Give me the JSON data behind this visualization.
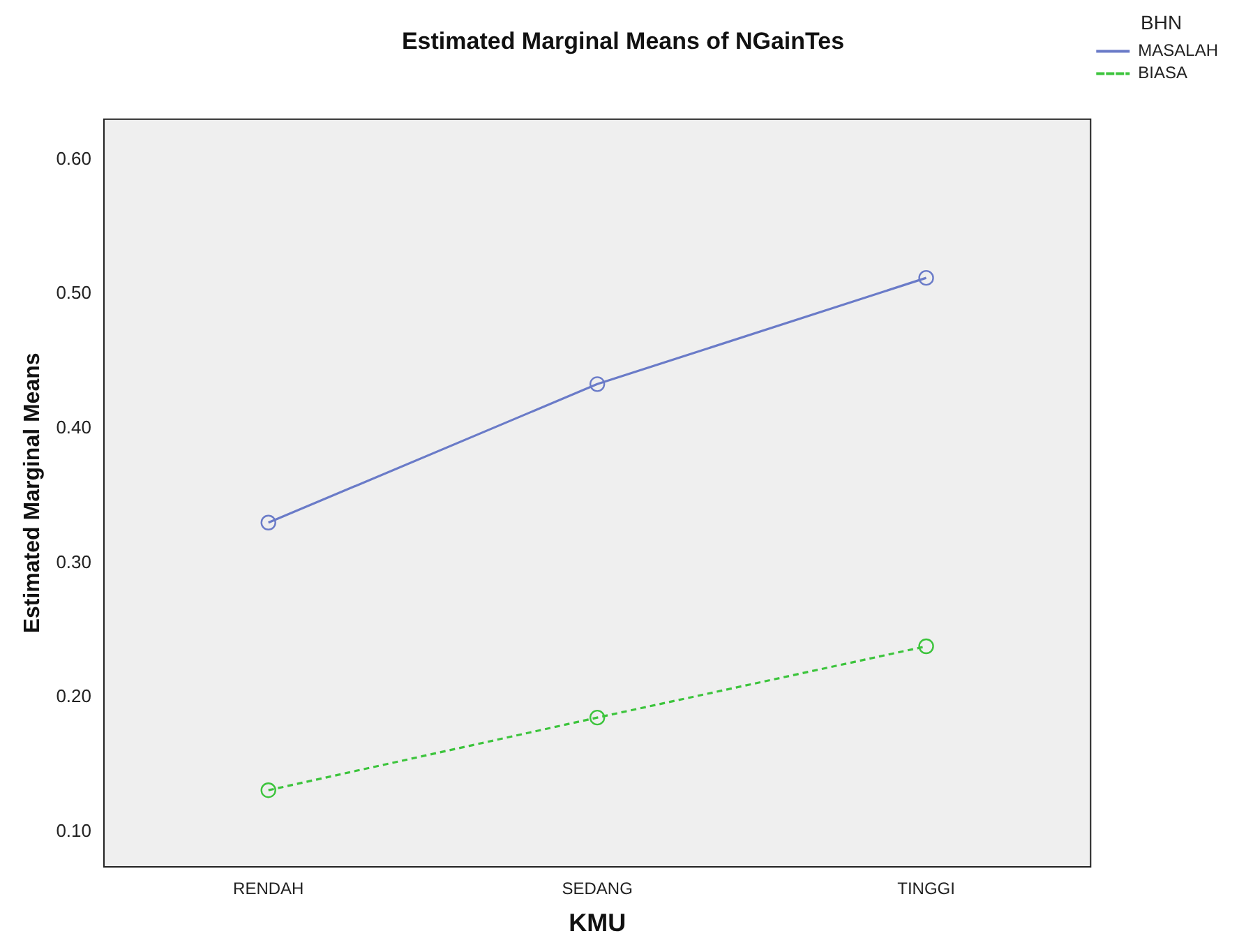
{
  "chart_data": {
    "type": "line",
    "title": "Estimated Marginal Means of NGainTes",
    "xlabel": "KMU",
    "ylabel": "Estimated Marginal Means",
    "legend_title": "BHN",
    "categories": [
      "RENDAH",
      "SEDANG",
      "TINGGI"
    ],
    "series": [
      {
        "name": "MASALAH",
        "color": "#6a7bc8",
        "values": [
          0.33,
          0.433,
          0.512
        ],
        "line_style": "solid"
      },
      {
        "name": "BIASA",
        "color": "#3cc43c",
        "values": [
          0.131,
          0.185,
          0.238
        ],
        "line_style": "dashed"
      }
    ],
    "ylim": [
      0.074,
      0.63
    ],
    "yticks": [
      {
        "value": 0.1,
        "label": "0.10"
      },
      {
        "value": 0.2,
        "label": "0.20"
      },
      {
        "value": 0.3,
        "label": "0.30"
      },
      {
        "value": 0.4,
        "label": "0.40"
      },
      {
        "value": 0.5,
        "label": "0.50"
      },
      {
        "value": 0.6,
        "label": "0.60"
      }
    ],
    "grid": false,
    "legend": "top right",
    "marker": "circle"
  }
}
